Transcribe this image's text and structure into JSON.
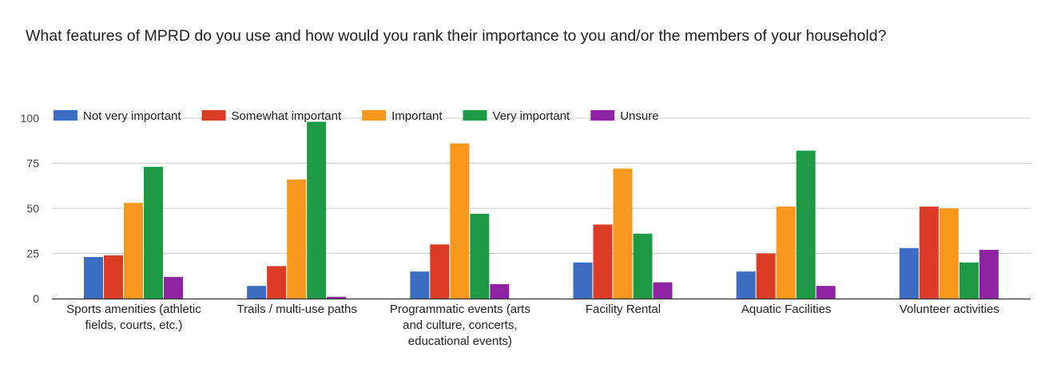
{
  "title": "What features of MPRD do you use and how would you rank their importance to you and/or the members of your household?",
  "chart_data": {
    "type": "bar",
    "categories": [
      [
        "Sports amenities (athletic",
        "fields, courts, etc.)"
      ],
      [
        "Trails / multi-use paths"
      ],
      [
        "Programmatic events (arts",
        "and culture, concerts,",
        "educational events)"
      ],
      [
        "Facility Rental"
      ],
      [
        "Aquatic Facilities"
      ],
      [
        "Volunteer activities"
      ]
    ],
    "series": [
      {
        "name": "Not very important",
        "color": "#3d6cc3",
        "values": [
          23,
          7,
          15,
          20,
          15,
          28
        ]
      },
      {
        "name": "Somewhat important",
        "color": "#dc3b26",
        "values": [
          24,
          18,
          30,
          41,
          25,
          51
        ]
      },
      {
        "name": "Important",
        "color": "#f8991e",
        "values": [
          53,
          66,
          86,
          72,
          51,
          50
        ]
      },
      {
        "name": "Very important",
        "color": "#1e9a47",
        "values": [
          73,
          98,
          47,
          36,
          82,
          20
        ]
      },
      {
        "name": "Unsure",
        "color": "#8e24a4",
        "values": [
          12,
          1,
          8,
          9,
          7,
          27
        ]
      }
    ],
    "yticks": [
      "0",
      "25",
      "50",
      "75",
      "100"
    ],
    "ylim": [
      0,
      100
    ],
    "legend_position": "top",
    "grid": true
  }
}
